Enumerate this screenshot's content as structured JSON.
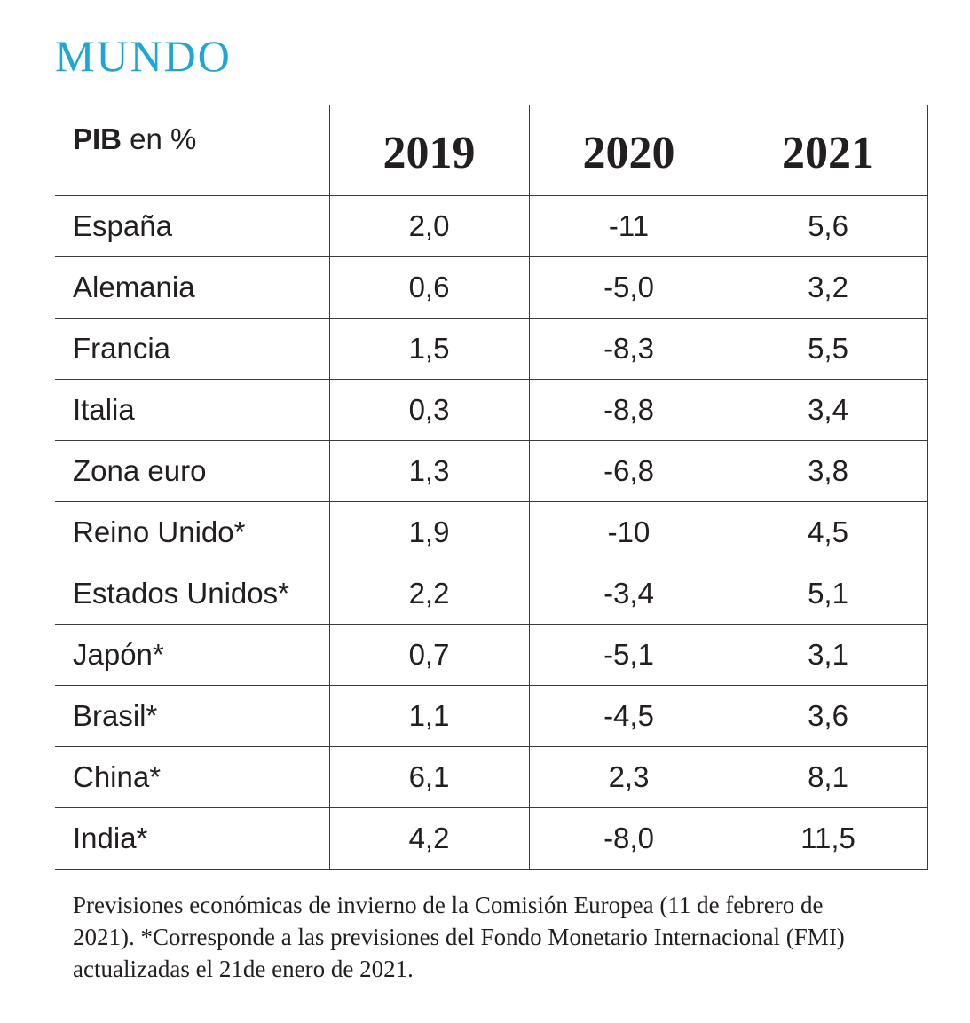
{
  "title": "MUNDO",
  "table": {
    "header_label_bold": "PIB",
    "header_label_rest": " en %",
    "years": [
      "2019",
      "2020",
      "2021"
    ],
    "rows": [
      {
        "country": "España",
        "v2019": "2,0",
        "v2020": "-11",
        "v2021": "5,6"
      },
      {
        "country": "Alemania",
        "v2019": "0,6",
        "v2020": "-5,0",
        "v2021": "3,2"
      },
      {
        "country": "Francia",
        "v2019": "1,5",
        "v2020": "-8,3",
        "v2021": "5,5"
      },
      {
        "country": "Italia",
        "v2019": "0,3",
        "v2020": "-8,8",
        "v2021": "3,4"
      },
      {
        "country": "Zona euro",
        "v2019": "1,3",
        "v2020": "-6,8",
        "v2021": "3,8"
      },
      {
        "country": "Reino Unido*",
        "v2019": "1,9",
        "v2020": "-10",
        "v2021": "4,5"
      },
      {
        "country": "Estados Unidos*",
        "v2019": "2,2",
        "v2020": "-3,4",
        "v2021": "5,1"
      },
      {
        "country": "Japón*",
        "v2019": "0,7",
        "v2020": "-5,1",
        "v2021": "3,1"
      },
      {
        "country": "Brasil*",
        "v2019": "1,1",
        "v2020": "-4,5",
        "v2021": "3,6"
      },
      {
        "country": "China*",
        "v2019": "6,1",
        "v2020": "2,3",
        "v2021": "8,1"
      },
      {
        "country": "India*",
        "v2019": "4,2",
        "v2020": "-8,0",
        "v2021": "11,5"
      }
    ]
  },
  "note": "Previsiones económicas de invierno de la Comisión Europea (11 de febrero de 2021). *Corresponde a las previsiones del Fondo Monetario Internacional (FMI) actualizadas el 21de enero de 2021.",
  "colors": {
    "title": "#1ea7d6",
    "text": "#231f20",
    "rule": "#3a3a3a"
  }
}
